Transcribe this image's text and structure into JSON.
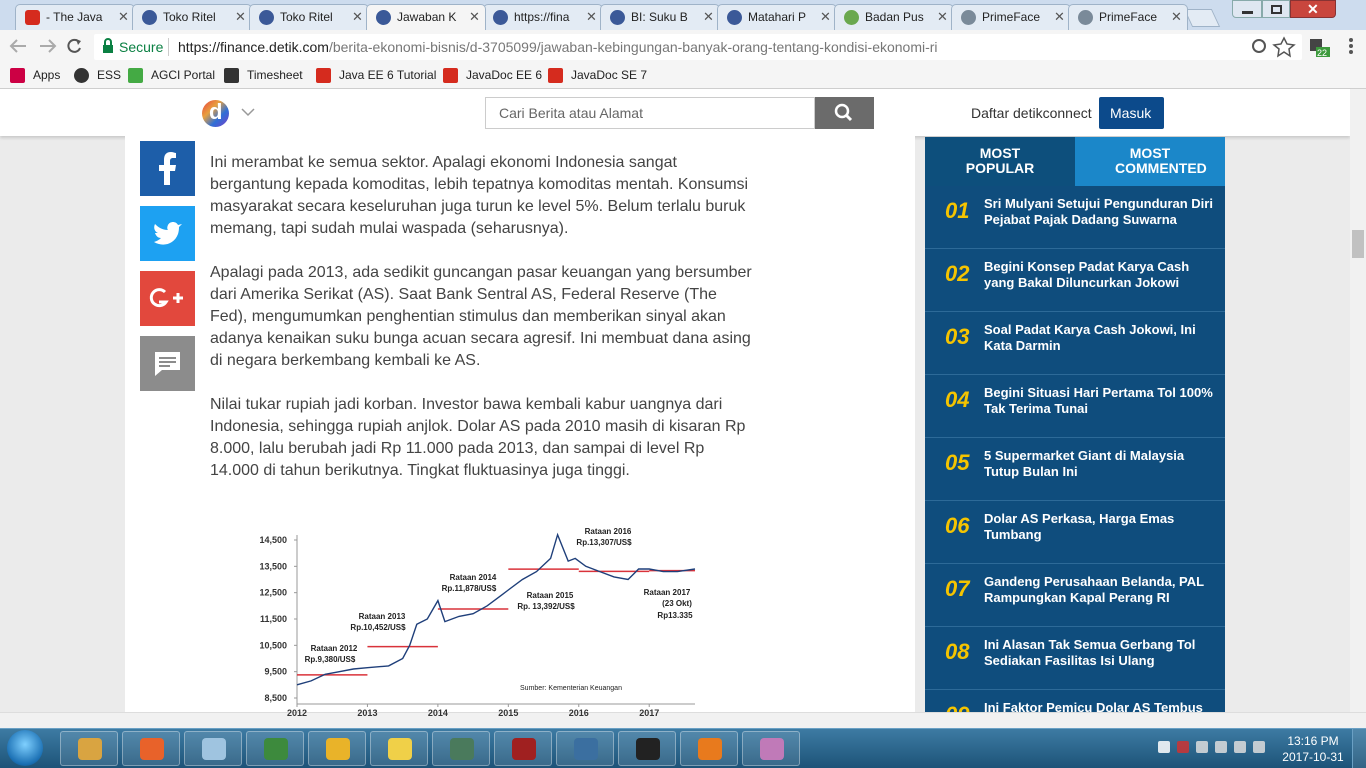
{
  "browser": {
    "tabs": [
      "- The Java",
      "Toko Ritel",
      "Toko Ritel",
      "Jawaban K",
      "https://fina",
      "BI: Suku B",
      "Matahari P",
      "Badan Pus",
      "PrimeFace",
      "PrimeFace"
    ],
    "secure_label": "Secure",
    "url_host": "https://finance.detik.com",
    "url_path": "/berita-ekonomi-bisnis/d-3705099/jawaban-kebingungan-banyak-orang-tentang-kondisi-ekonomi-ri",
    "extension_badge": "22",
    "bookmarks": [
      "Apps",
      "ESS",
      "AGCI Portal",
      "Timesheet",
      "Java EE 6 Tutorial",
      "JavaDoc EE 6",
      "JavaDoc SE 7"
    ]
  },
  "site_header": {
    "logo": "d",
    "search_placeholder": "Cari Berita atau Alamat",
    "register": "Daftar detikconnect",
    "login": "Masuk"
  },
  "article": {
    "paragraphs": [
      "Ini merambat ke semua sektor. Apalagi ekonomi Indonesia sangat bergantung kepada komoditas, lebih tepatnya komoditas mentah. Konsumsi masyarakat secara keseluruhan juga turun ke level 5%. Belum terlalu buruk memang, tapi sudah mulai waspada (seharusnya).",
      "Apalagi pada 2013, ada sedikit guncangan pasar keuangan yang bersumber dari Amerika Serikat (AS). Saat Bank Sentral AS, Federal Reserve (The Fed), mengumumkan penghentian stimulus dan memberikan sinyal akan adanya kenaikan suku bunga acuan secara agresif. Ini membuat dana asing di negara berkembang kembali ke AS.",
      "Nilai tukar rupiah jadi korban. Investor bawa kembali kabur uangnya dari Indonesia, sehingga rupiah anjlok. Dolar AS pada 2010 masih di kisaran Rp 8.000, lalu berubah jadi Rp 11.000 pada 2013, dan sampai di level Rp 14.000 di tahun berikutnya. Tingkat fluktuasinya juga tinggi."
    ]
  },
  "chart_data": {
    "type": "line",
    "x": [
      2012.0,
      2012.2,
      2012.4,
      2012.6,
      2012.8,
      2013.0,
      2013.3,
      2013.5,
      2013.6,
      2013.7,
      2013.85,
      2014.0,
      2014.1,
      2014.3,
      2014.5,
      2014.7,
      2014.9,
      2015.0,
      2015.2,
      2015.4,
      2015.6,
      2015.7,
      2015.85,
      2015.95,
      2016.1,
      2016.3,
      2016.5,
      2016.7,
      2016.85,
      2017.0,
      2017.2,
      2017.4,
      2017.65
    ],
    "values": [
      9000,
      9150,
      9400,
      9500,
      9600,
      9650,
      9720,
      10000,
      10500,
      11300,
      11500,
      12200,
      11400,
      11600,
      11700,
      12000,
      12400,
      12600,
      13000,
      13300,
      13800,
      14700,
      13700,
      13800,
      13500,
      13300,
      13100,
      13000,
      13400,
      13400,
      13300,
      13300,
      13400
    ],
    "color": "#1f3f7a",
    "xlim": [
      2012,
      2017.65
    ],
    "xticks": [
      2012,
      2013,
      2014,
      2015,
      2016,
      2017
    ],
    "ylim": [
      8500,
      14500
    ],
    "yticks": [
      {
        "value": 8500,
        "label": "8,500"
      },
      {
        "value": 9500,
        "label": "9,500"
      },
      {
        "value": 10500,
        "label": "10,500"
      },
      {
        "value": 11500,
        "label": "11,500"
      },
      {
        "value": 12500,
        "label": "12,500"
      },
      {
        "value": 13500,
        "label": "13,500"
      },
      {
        "value": 14500,
        "label": "14,500"
      }
    ],
    "averages": [
      {
        "name": "Rataan 2012",
        "value": 9380,
        "label": "Rp.9,380/US$"
      },
      {
        "name": "Rataan 2013",
        "value": 10452,
        "label": "Rp.10,452/US$"
      },
      {
        "name": "Rataan 2014",
        "value": 11878,
        "label": "Rp.11,878/US$"
      },
      {
        "name": "Rataan 2015",
        "value": 13392,
        "label": "Rp. 13,392/US$"
      },
      {
        "name": "Rataan 2016",
        "value": 13307,
        "label": "Rp.13,307/US$"
      },
      {
        "name": "Rataan 2017",
        "note": "(23 Okt)",
        "value": 13335,
        "label": "Rp13.335"
      }
    ],
    "average_color": "#d9323a",
    "source": "Sumber: Kementerian Keuangan"
  },
  "sidebar": {
    "tabs": [
      "MOST POPULAR",
      "MOST COMMENTED"
    ],
    "items": [
      {
        "rank": "01",
        "title": "Sri Mulyani Setujui Pengunduran Diri Pejabat Pajak Dadang Suwarna"
      },
      {
        "rank": "02",
        "title": "Begini Konsep Padat Karya Cash yang Bakal Diluncurkan Jokowi"
      },
      {
        "rank": "03",
        "title": "Soal Padat Karya Cash Jokowi, Ini Kata Darmin"
      },
      {
        "rank": "04",
        "title": "Begini Situasi Hari Pertama Tol 100% Tak Terima Tunai"
      },
      {
        "rank": "05",
        "title": "5 Supermarket Giant di Malaysia Tutup Bulan Ini"
      },
      {
        "rank": "06",
        "title": "Dolar AS Perkasa, Harga Emas Tumbang"
      },
      {
        "rank": "07",
        "title": "Gandeng Perusahaan Belanda, PAL Rampungkan Kapal Perang RI"
      },
      {
        "rank": "08",
        "title": "Ini Alasan Tak Semua Gerbang Tol Sediakan Fasilitas Isi Ulang"
      },
      {
        "rank": "09",
        "title": "Ini Faktor Pemicu Dolar AS Tembus"
      }
    ]
  },
  "taskbar": {
    "time": "13:16 PM",
    "date": "2017-10-31"
  }
}
